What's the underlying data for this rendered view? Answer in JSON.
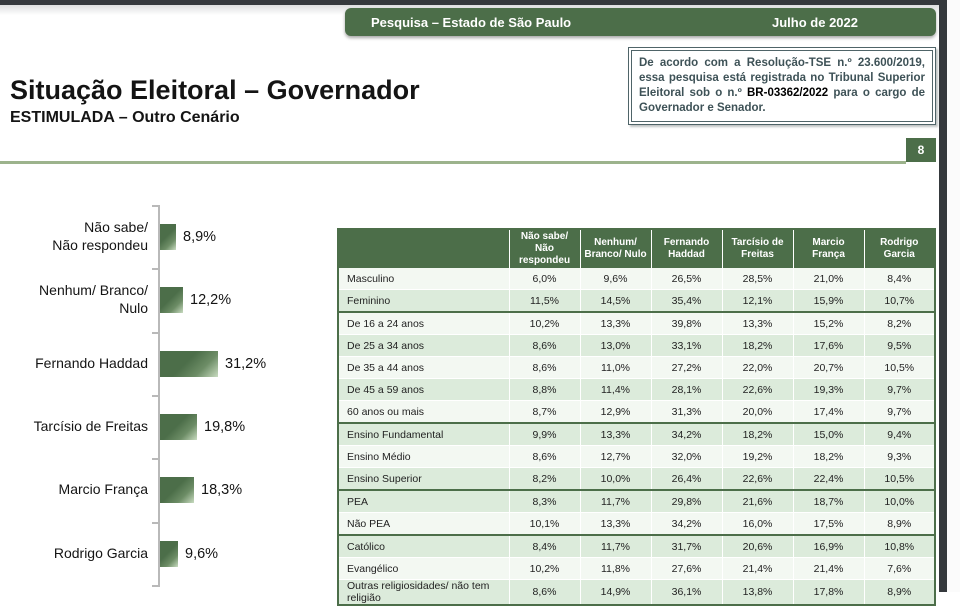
{
  "colors": {
    "brand_green": "#4c6e49",
    "rule_green": "#9cb38c",
    "row_shaded": "#dcebdb",
    "row_light": "#f3f8f2",
    "edge_strip": "#35393d",
    "tse_border": "#4f6468",
    "tse_text": "#3e5257"
  },
  "banner": {
    "left": "Pesquisa – Estado de São Paulo",
    "right": "Julho de 2022"
  },
  "page": {
    "title": "Situação Eleitoral – Governador",
    "subtitle": "ESTIMULADA – Outro Cenário",
    "page_number": "8"
  },
  "tse_box": {
    "text_before": "De acordo com a Resolução-TSE n.º 23.600/2019, essa pesquisa está registrada no Tribunal Superior Eleitoral sob o n.º ",
    "highlight": "BR-03362/2022",
    "text_after": " para o cargo de Governador e Senador."
  },
  "chart_data": {
    "type": "bar",
    "orientation": "horizontal",
    "categories": [
      "Não sabe/ Não respondeu",
      "Nenhum/ Branco/ Nulo",
      "Fernando Haddad",
      "Tarcísio de Freitas",
      "Marcio França",
      "Rodrigo Garcia"
    ],
    "category_lines": [
      [
        "Não sabe/",
        "Não respondeu"
      ],
      [
        "Nenhum/ Branco/",
        "Nulo"
      ],
      [
        "Fernando Haddad"
      ],
      [
        "Tarcísio de Freitas"
      ],
      [
        "Marcio França"
      ],
      [
        "Rodrigo Garcia"
      ]
    ],
    "values": [
      8.9,
      12.2,
      31.2,
      19.8,
      18.3,
      9.6
    ],
    "value_labels": [
      "8,9%",
      "12,2%",
      "31,2%",
      "19,8%",
      "18,3%",
      "9,6%"
    ],
    "title": "Situação Eleitoral – Governador (ESTIMULADA – Outro Cenário)",
    "xlabel": "",
    "ylabel": "",
    "xlim": [
      0,
      35
    ],
    "grid": false,
    "legend": false
  },
  "table": {
    "columns": [
      "Não sabe/ Não respondeu",
      "Nenhum/ Branco/ Nulo",
      "Fernando Haddad",
      "Tarcísio de Freitas",
      "Marcio França",
      "Rodrigo Garcia"
    ],
    "rows": [
      {
        "label": "Masculino",
        "values": [
          "6,0%",
          "9,6%",
          "26,5%",
          "28,5%",
          "21,0%",
          "8,4%"
        ],
        "shaded": false,
        "group_end": false
      },
      {
        "label": "Feminino",
        "values": [
          "11,5%",
          "14,5%",
          "35,4%",
          "12,1%",
          "15,9%",
          "10,7%"
        ],
        "shaded": true,
        "group_end": true
      },
      {
        "label": "De 16 a 24 anos",
        "values": [
          "10,2%",
          "13,3%",
          "39,8%",
          "13,3%",
          "15,2%",
          "8,2%"
        ],
        "shaded": false,
        "group_end": false
      },
      {
        "label": "De 25 a 34 anos",
        "values": [
          "8,6%",
          "13,0%",
          "33,1%",
          "18,2%",
          "17,6%",
          "9,5%"
        ],
        "shaded": true,
        "group_end": false
      },
      {
        "label": "De 35 a 44 anos",
        "values": [
          "8,6%",
          "11,0%",
          "27,2%",
          "22,0%",
          "20,7%",
          "10,5%"
        ],
        "shaded": false,
        "group_end": false
      },
      {
        "label": "De 45 a 59 anos",
        "values": [
          "8,8%",
          "11,4%",
          "28,1%",
          "22,6%",
          "19,3%",
          "9,7%"
        ],
        "shaded": true,
        "group_end": false
      },
      {
        "label": "60 anos ou mais",
        "values": [
          "8,7%",
          "12,9%",
          "31,3%",
          "20,0%",
          "17,4%",
          "9,7%"
        ],
        "shaded": false,
        "group_end": true
      },
      {
        "label": "Ensino Fundamental",
        "values": [
          "9,9%",
          "13,3%",
          "34,2%",
          "18,2%",
          "15,0%",
          "9,4%"
        ],
        "shaded": true,
        "group_end": false
      },
      {
        "label": "Ensino Médio",
        "values": [
          "8,6%",
          "12,7%",
          "32,0%",
          "19,2%",
          "18,2%",
          "9,3%"
        ],
        "shaded": false,
        "group_end": false
      },
      {
        "label": "Ensino Superior",
        "values": [
          "8,2%",
          "10,0%",
          "26,4%",
          "22,6%",
          "22,4%",
          "10,5%"
        ],
        "shaded": true,
        "group_end": true
      },
      {
        "label": "PEA",
        "values": [
          "8,3%",
          "11,7%",
          "29,8%",
          "21,6%",
          "18,7%",
          "10,0%"
        ],
        "shaded": true,
        "group_end": false
      },
      {
        "label": "Não PEA",
        "values": [
          "10,1%",
          "13,3%",
          "34,2%",
          "16,0%",
          "17,5%",
          "8,9%"
        ],
        "shaded": false,
        "group_end": true
      },
      {
        "label": "Católico",
        "values": [
          "8,4%",
          "11,7%",
          "31,7%",
          "20,6%",
          "16,9%",
          "10,8%"
        ],
        "shaded": true,
        "group_end": false
      },
      {
        "label": "Evangélico",
        "values": [
          "10,2%",
          "11,8%",
          "27,6%",
          "21,4%",
          "21,4%",
          "7,6%"
        ],
        "shaded": false,
        "group_end": false
      },
      {
        "label": "Outras religiosidades/ não tem religião",
        "values": [
          "8,6%",
          "14,9%",
          "36,1%",
          "13,8%",
          "17,8%",
          "8,9%"
        ],
        "shaded": true,
        "group_end": true
      }
    ]
  }
}
